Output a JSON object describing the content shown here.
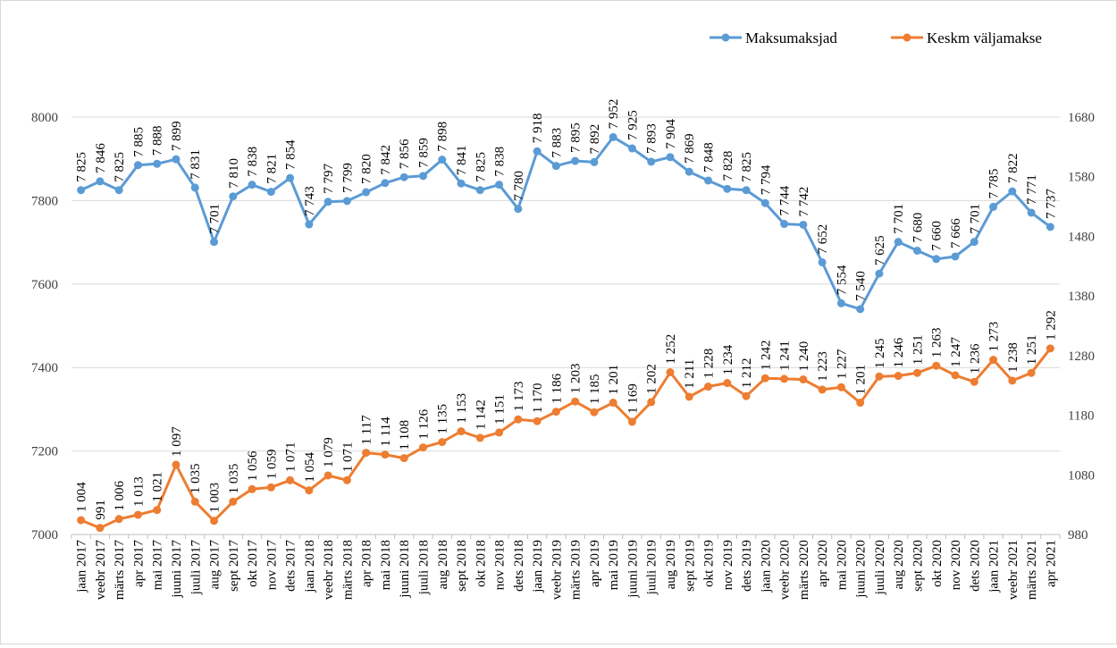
{
  "chart_data": {
    "type": "line",
    "title": "",
    "legend_position": "top-right",
    "grid": true,
    "categories": [
      "jaan 2017",
      "veebr 2017",
      "märts 2017",
      "apr 2017",
      "mai 2017",
      "juuni 2017",
      "juuli 2017",
      "aug 2017",
      "sept 2017",
      "okt 2017",
      "nov 2017",
      "dets 2017",
      "jaan 2018",
      "veebr 2018",
      "märts 2018",
      "apr 2018",
      "mai 2018",
      "juuni 2018",
      "juuli 2018",
      "aug 2018",
      "sept 2018",
      "okt 2018",
      "nov 2018",
      "dets 2018",
      "jaan 2019",
      "veebr 2019",
      "märts 2019",
      "apr 2019",
      "mai 2019",
      "juuni 2019",
      "juuli 2019",
      "aug 2019",
      "sept 2019",
      "okt 2019",
      "nov 2019",
      "dets 2019",
      "jaan 2020",
      "veebr 2020",
      "märts 2020",
      "apr 2020",
      "mai 2020",
      "juuni 2020",
      "juuli 2020",
      "aug 2020",
      "sept 2020",
      "okt 2020",
      "nov 2020",
      "dets 2020",
      "jaan 2021",
      "veebr 2021",
      "märts 2021",
      "apr 2021"
    ],
    "y_left": {
      "min": 7000,
      "max": 8000,
      "ticks": [
        "7000",
        "7200",
        "7400",
        "7600",
        "7800",
        "8000"
      ]
    },
    "y_right": {
      "min": 980,
      "max": 1680,
      "ticks": [
        "980",
        "1080",
        "1180",
        "1280",
        "1380",
        "1480",
        "1580",
        "1680"
      ]
    },
    "series": [
      {
        "name": "Maksumaksjad",
        "axis": "left",
        "color": "#5b9bd5",
        "values": [
          7825,
          7846,
          7825,
          7885,
          7888,
          7899,
          7831,
          7701,
          7810,
          7838,
          7821,
          7854,
          7743,
          7797,
          7799,
          7820,
          7842,
          7856,
          7859,
          7898,
          7841,
          7825,
          7838,
          7780,
          7918,
          7883,
          7895,
          7892,
          7952,
          7925,
          7893,
          7904,
          7869,
          7848,
          7828,
          7825,
          7794,
          7744,
          7742,
          7652,
          7554,
          7540,
          7625,
          7701,
          7680,
          7660,
          7666,
          7701,
          7785,
          7822,
          7771,
          7737
        ],
        "labels": [
          "7 825",
          "7 846",
          "7 825",
          "7 885",
          "7 888",
          "7 899",
          "7 831",
          "7 701",
          "7 810",
          "7 838",
          "7 821",
          "7 854",
          "7 743",
          "7 797",
          "7 799",
          "7 820",
          "7 842",
          "7 856",
          "7 859",
          "7 898",
          "7 841",
          "7 825",
          "7 838",
          "7 780",
          "7 918",
          "7 883",
          "7 895",
          "7 892",
          "7 952",
          "7 925",
          "7 893",
          "7 904",
          "7 869",
          "7 848",
          "7 828",
          "7 825",
          "7 794",
          "7 744",
          "7 742",
          "7 652",
          "7 554",
          "7 540",
          "7 625",
          "7 701",
          "7 680",
          "7 660",
          "7 666",
          "7 701",
          "7 785",
          "7 822",
          "7 771",
          "7 737"
        ]
      },
      {
        "name": "Keskm väljamakse",
        "axis": "right",
        "color": "#ed7d31",
        "values": [
          1004,
          991,
          1006,
          1013,
          1021,
          1097,
          1035,
          1003,
          1035,
          1056,
          1059,
          1071,
          1054,
          1079,
          1071,
          1117,
          1114,
          1108,
          1126,
          1135,
          1153,
          1142,
          1151,
          1173,
          1170,
          1186,
          1203,
          1185,
          1201,
          1169,
          1202,
          1252,
          1211,
          1228,
          1234,
          1212,
          1242,
          1241,
          1240,
          1223,
          1227,
          1201,
          1245,
          1246,
          1251,
          1263,
          1247,
          1236,
          1273,
          1238,
          1251,
          1292
        ],
        "labels": [
          "1 004",
          "991",
          "1 006",
          "1 013",
          "1 021",
          "1 097",
          "1 035",
          "1 003",
          "1 035",
          "1 056",
          "1 059",
          "1 071",
          "1 054",
          "1 079",
          "1 071",
          "1 117",
          "1 114",
          "1 108",
          "1 126",
          "1 135",
          "1 153",
          "1 142",
          "1 151",
          "1 173",
          "1 170",
          "1 186",
          "1 203",
          "1 185",
          "1 201",
          "1 169",
          "1 202",
          "1 252",
          "1 211",
          "1 228",
          "1 234",
          "1 212",
          "1 242",
          "1 241",
          "1 240",
          "1 223",
          "1 227",
          "1 201",
          "1 245",
          "1 246",
          "1 251",
          "1 263",
          "1 247",
          "1 236",
          "1 273",
          "1 238",
          "1 251",
          "1 292"
        ]
      }
    ]
  }
}
